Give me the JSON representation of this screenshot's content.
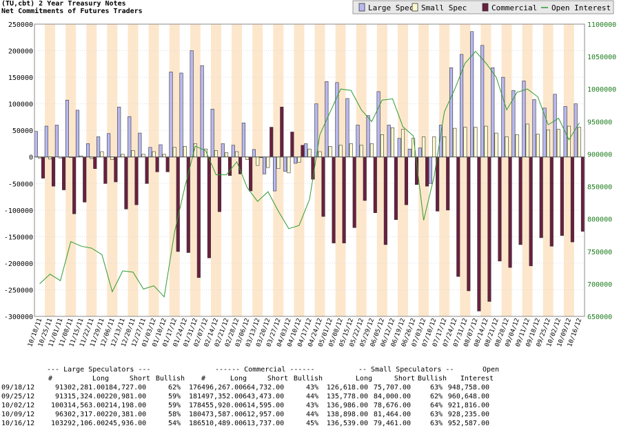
{
  "header": {
    "title": "(TU,cbt) 2 Year Treasury Notes",
    "subtitle": "Net Commitments of Futures Traders"
  },
  "legend": {
    "items": [
      {
        "label": "Large Spec",
        "color": "#b8b8f0"
      },
      {
        "label": "Small Spec",
        "color": "#fffbd0"
      },
      {
        "label": "Commercial",
        "color": "#6b1f3f"
      },
      {
        "label": "Open Interest",
        "color": "#2e9a2e"
      }
    ]
  },
  "chart_data": {
    "type": "bar",
    "title": "(TU,cbt) 2 Year Treasury Notes",
    "subtitle": "Net Commitments of Futures Traders",
    "y_left": {
      "min": -300000,
      "max": 250000,
      "ticks": [
        250000,
        200000,
        150000,
        100000,
        50000,
        0,
        -50000,
        -100000,
        -150000,
        -200000,
        -250000,
        -300000
      ]
    },
    "y_right": {
      "min": 650000,
      "max": 1100000,
      "ticks": [
        1100000,
        1050000,
        1000000,
        950000,
        900000,
        850000,
        800000,
        750000,
        700000,
        650000
      ]
    },
    "x_labels": [
      "10/18/11",
      "10/25/11",
      "11/01/11",
      "11/08/11",
      "11/15/11",
      "11/22/11",
      "11/29/11",
      "12/06/11",
      "12/13/11",
      "12/20/11",
      "12/27/11",
      "01/03/12",
      "01/10/12",
      "01/17/12",
      "01/24/12",
      "01/31/12",
      "02/07/12",
      "02/14/12",
      "02/21/12",
      "02/28/12",
      "03/06/12",
      "03/13/12",
      "03/20/12",
      "03/27/12",
      "04/03/12",
      "04/10/12",
      "04/17/12",
      "04/24/12",
      "05/01/12",
      "05/08/12",
      "05/15/12",
      "05/22/12",
      "05/29/12",
      "06/05/12",
      "06/12/12",
      "06/19/12",
      "06/26/12",
      "07/03/12",
      "07/10/12",
      "07/17/12",
      "07/24/12",
      "07/31/12",
      "08/07/12",
      "08/14/12",
      "08/21/12",
      "08/28/12",
      "09/04/12",
      "09/11/12",
      "09/18/12",
      "09/25/12",
      "10/02/12",
      "10/09/12",
      "10/16/12"
    ],
    "series": [
      {
        "name": "Large Spec",
        "color": "#b8b8f0",
        "values": [
          48000,
          58000,
          60000,
          107000,
          88000,
          25000,
          38000,
          44000,
          94000,
          76000,
          45000,
          18000,
          23000,
          160000,
          158000,
          200000,
          172000,
          90000,
          25000,
          22000,
          64000,
          14000,
          -32000,
          -64000,
          -27000,
          -12000,
          25000,
          100000,
          142000,
          140000,
          110000,
          60000,
          78000,
          123000,
          60000,
          35000,
          15000,
          17000,
          -50000,
          60000,
          168000,
          193000,
          236000,
          210000,
          168000,
          150000,
          125000,
          143000,
          108000,
          92000,
          118000,
          95000,
          100000
        ]
      },
      {
        "name": "Small Spec",
        "color": "#fffbd0",
        "values": [
          -2000,
          -4000,
          -2000,
          -1000,
          2000,
          -3000,
          10000,
          -5000,
          5000,
          12000,
          5000,
          10000,
          5000,
          18000,
          20000,
          25000,
          15000,
          12000,
          8000,
          10000,
          -5000,
          -16000,
          -20000,
          -22000,
          -30000,
          -10000,
          15000,
          10000,
          20000,
          22000,
          25000,
          22000,
          25000,
          42000,
          55000,
          52000,
          35000,
          38000,
          38000,
          38000,
          54000,
          56000,
          56000,
          58000,
          45000,
          38000,
          42000,
          62000,
          43000,
          51000,
          52000,
          58000,
          56000
        ]
      },
      {
        "name": "Commercial",
        "color": "#6b1f3f",
        "values": [
          -40000,
          -55000,
          -62000,
          -107000,
          -85000,
          -22000,
          -50000,
          -47000,
          -98000,
          -90000,
          -50000,
          -28000,
          -28000,
          -178000,
          -180000,
          -227000,
          -190000,
          -103000,
          -35000,
          -32000,
          -64000,
          -1000,
          56000,
          94000,
          47000,
          22000,
          -42000,
          -112000,
          -162000,
          -162000,
          -133000,
          -82000,
          -105000,
          -165000,
          -118000,
          -90000,
          -52000,
          -55000,
          -102000,
          -100000,
          -225000,
          -252000,
          -290000,
          -272000,
          -196000,
          -208000,
          -165000,
          -205000,
          -152000,
          -168000,
          -148000,
          -160000,
          -140000
        ]
      },
      {
        "name": "Open Interest",
        "color": "#2e9a2e",
        "values": [
          700000,
          715000,
          705000,
          765000,
          758000,
          755000,
          745000,
          688000,
          720000,
          718000,
          692000,
          697000,
          680000,
          780000,
          850000,
          912000,
          905000,
          868000,
          868000,
          888000,
          848000,
          827000,
          842000,
          812000,
          785000,
          790000,
          830000,
          930000,
          965000,
          1000000,
          998000,
          968000,
          950000,
          983000,
          985000,
          942000,
          928000,
          798000,
          865000,
          965000,
          1000000,
          1040000,
          1058000,
          1040000,
          1018000,
          968000,
          995000,
          1000000,
          988000,
          945000,
          955000,
          922000,
          948000
        ]
      }
    ]
  },
  "table": {
    "group_headers": [
      "--- Large Speculators ---",
      "------ Commercial ------",
      "-- Small Speculators --",
      "Open"
    ],
    "columns": [
      "#",
      "Long",
      "Short",
      "Bullish",
      "#",
      "Long",
      "Short",
      "Bullish",
      "Long",
      "Short",
      "Bullish",
      "Interest"
    ],
    "rows": [
      {
        "date": "09/18/12",
        "ls_n": "91",
        "ls_long": "302,281.00",
        "ls_short": "184,727.00",
        "ls_bull": "62%",
        "c_n": "176",
        "c_long": "496,267.00",
        "c_short": "664,732.00",
        "c_bull": "43%",
        "ss_long": "126,618.00",
        "ss_short": "75,707.00",
        "ss_bull": "63%",
        "oi": "948,758.00"
      },
      {
        "date": "09/25/12",
        "ls_n": "91",
        "ls_long": "315,324.00",
        "ls_short": "220,981.00",
        "ls_bull": "59%",
        "c_n": "181",
        "c_long": "497,352.00",
        "c_short": "643,473.00",
        "c_bull": "44%",
        "ss_long": "135,778.00",
        "ss_short": "84,000.00",
        "ss_bull": "62%",
        "oi": "960,648.00"
      },
      {
        "date": "10/02/12",
        "ls_n": "100",
        "ls_long": "314,563.00",
        "ls_short": "214,198.00",
        "ls_bull": "59%",
        "c_n": "178",
        "c_long": "455,920.00",
        "c_short": "614,595.00",
        "c_bull": "43%",
        "ss_long": "136,986.00",
        "ss_short": "78,676.00",
        "ss_bull": "64%",
        "oi": "921,816.00"
      },
      {
        "date": "10/09/12",
        "ls_n": "96",
        "ls_long": "302,317.00",
        "ls_short": "220,381.00",
        "ls_bull": "58%",
        "c_n": "180",
        "c_long": "473,587.00",
        "c_short": "612,957.00",
        "c_bull": "44%",
        "ss_long": "138,898.00",
        "ss_short": "81,464.00",
        "ss_bull": "63%",
        "oi": "928,235.00"
      },
      {
        "date": "10/16/12",
        "ls_n": "103",
        "ls_long": "292,106.00",
        "ls_short": "245,936.00",
        "ls_bull": "54%",
        "c_n": "186",
        "c_long": "510,489.00",
        "c_short": "613,737.00",
        "c_bull": "45%",
        "ss_long": "136,539.00",
        "ss_short": "79,461.00",
        "ss_bull": "63%",
        "oi": "952,587.00"
      }
    ]
  }
}
